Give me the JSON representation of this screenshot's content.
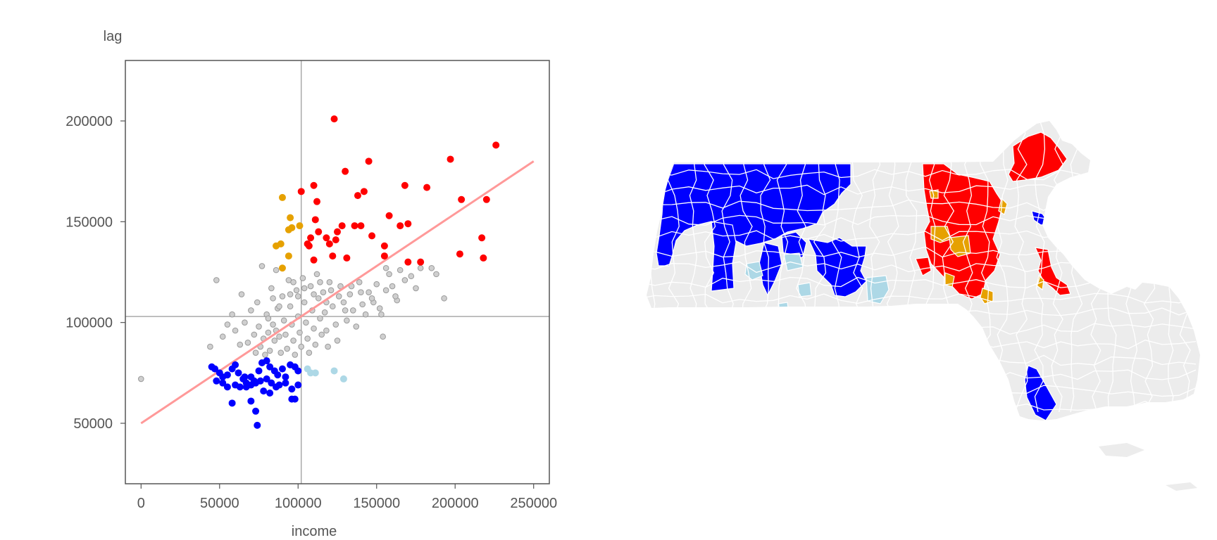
{
  "chart_data": [
    {
      "type": "scatter",
      "title": "",
      "xlabel": "income",
      "ylabel": "lag",
      "xlim": [
        -10000,
        260000
      ],
      "ylim": [
        20000,
        230000
      ],
      "x_ticks": [
        "0",
        "50000",
        "100000",
        "150000",
        "200000",
        "250000"
      ],
      "y_ticks": [
        "50000",
        "100000",
        "150000",
        "200000"
      ],
      "x_tick_values": [
        0,
        50000,
        100000,
        150000,
        200000,
        250000
      ],
      "y_tick_values": [
        50000,
        100000,
        150000,
        200000
      ],
      "grid": false,
      "reference_lines": {
        "x_mean": 102000,
        "y_mean": 103000
      },
      "regression_line": {
        "points": [
          [
            0,
            50000
          ],
          [
            250000,
            180000
          ]
        ],
        "color": "#ff9999"
      },
      "colors": {
        "hh": "#ff0000",
        "lh": "#e6a100",
        "ll": "#0000ff",
        "hl": "#add8e6",
        "ns": "#aaaaaa",
        "axis": "#555555",
        "refline": "#aaaaaa"
      },
      "series": [
        {
          "key": "hh",
          "values": [
            [
              123000,
              201000
            ],
            [
              130000,
              175000
            ],
            [
              145000,
              180000
            ],
            [
              110000,
              168000
            ],
            [
              102000,
              165000
            ],
            [
              112000,
              160000
            ],
            [
              138000,
              163000
            ],
            [
              142000,
              165000
            ],
            [
              158000,
              153000
            ],
            [
              165000,
              148000
            ],
            [
              170000,
              149000
            ],
            [
              168000,
              168000
            ],
            [
              182000,
              167000
            ],
            [
              197000,
              181000
            ],
            [
              226000,
              188000
            ],
            [
              204000,
              161000
            ],
            [
              220000,
              161000
            ],
            [
              217000,
              142000
            ],
            [
              218000,
              132000
            ],
            [
              203000,
              134000
            ],
            [
              178000,
              130000
            ],
            [
              170000,
              130000
            ],
            [
              155000,
              133000
            ],
            [
              155000,
              138000
            ],
            [
              147000,
              143000
            ],
            [
              140000,
              148000
            ],
            [
              136000,
              148000
            ],
            [
              131000,
              132000
            ],
            [
              122000,
              133000
            ],
            [
              110000,
              131000
            ],
            [
              106000,
              139000
            ],
            [
              108000,
              142000
            ],
            [
              113000,
              145000
            ],
            [
              118000,
              142000
            ],
            [
              125000,
              145000
            ],
            [
              128000,
              148000
            ],
            [
              120000,
              139000
            ],
            [
              124000,
              141000
            ],
            [
              111000,
              151000
            ],
            [
              107000,
              138000
            ]
          ]
        },
        {
          "key": "lh",
          "values": [
            [
              90000,
              162000
            ],
            [
              95000,
              152000
            ],
            [
              96000,
              147000
            ],
            [
              94000,
              146000
            ],
            [
              101000,
              148000
            ],
            [
              89000,
              139000
            ],
            [
              86000,
              138000
            ],
            [
              94000,
              133000
            ],
            [
              90000,
              127000
            ]
          ]
        },
        {
          "key": "ll",
          "values": [
            [
              45000,
              78000
            ],
            [
              47000,
              77000
            ],
            [
              50000,
              75000
            ],
            [
              52000,
              73000
            ],
            [
              55000,
              74000
            ],
            [
              58000,
              77000
            ],
            [
              60000,
              79000
            ],
            [
              62000,
              75000
            ],
            [
              65000,
              72000
            ],
            [
              67000,
              70000
            ],
            [
              70000,
              73000
            ],
            [
              72000,
              71000
            ],
            [
              75000,
              76000
            ],
            [
              77000,
              80000
            ],
            [
              80000,
              81000
            ],
            [
              82000,
              78000
            ],
            [
              85000,
              76000
            ],
            [
              87000,
              74000
            ],
            [
              90000,
              77000
            ],
            [
              92000,
              73000
            ],
            [
              95000,
              79000
            ],
            [
              98000,
              78000
            ],
            [
              100000,
              76000
            ],
            [
              48000,
              71000
            ],
            [
              52000,
              70000
            ],
            [
              55000,
              68000
            ],
            [
              60000,
              69000
            ],
            [
              63000,
              68000
            ],
            [
              67000,
              68000
            ],
            [
              70000,
              69000
            ],
            [
              73000,
              70000
            ],
            [
              76000,
              71000
            ],
            [
              80000,
              72000
            ],
            [
              83000,
              70000
            ],
            [
              86000,
              68000
            ],
            [
              88000,
              69000
            ],
            [
              92000,
              70000
            ],
            [
              96000,
              67000
            ],
            [
              100000,
              69000
            ],
            [
              58000,
              60000
            ],
            [
              70000,
              61000
            ],
            [
              73000,
              56000
            ],
            [
              74000,
              49000
            ],
            [
              96000,
              62000
            ],
            [
              98000,
              62000
            ],
            [
              78000,
              66000
            ],
            [
              82000,
              65000
            ],
            [
              66000,
              73000
            ]
          ]
        },
        {
          "key": "hl",
          "values": [
            [
              106000,
              77000
            ],
            [
              108000,
              75000
            ],
            [
              111000,
              75000
            ],
            [
              123000,
              76000
            ],
            [
              129000,
              72000
            ]
          ]
        },
        {
          "key": "ns",
          "values": [
            [
              0,
              72000
            ],
            [
              48000,
              121000
            ],
            [
              44000,
              88000
            ],
            [
              52000,
              93000
            ],
            [
              55000,
              99000
            ],
            [
              58000,
              104000
            ],
            [
              60000,
              96000
            ],
            [
              63000,
              89000
            ],
            [
              64000,
              114000
            ],
            [
              66000,
              100000
            ],
            [
              68000,
              90000
            ],
            [
              70000,
              106000
            ],
            [
              72000,
              94000
            ],
            [
              73000,
              85000
            ],
            [
              74000,
              110000
            ],
            [
              75000,
              98000
            ],
            [
              76000,
              88000
            ],
            [
              77000,
              128000
            ],
            [
              78000,
              92000
            ],
            [
              79000,
              84000
            ],
            [
              80000,
              104000
            ],
            [
              81000,
              95000
            ],
            [
              82000,
              86000
            ],
            [
              83000,
              117000
            ],
            [
              84000,
              99000
            ],
            [
              85000,
              91000
            ],
            [
              86000,
              126000
            ],
            [
              87000,
              107000
            ],
            [
              88000,
              93000
            ],
            [
              89000,
              85000
            ],
            [
              90000,
              113000
            ],
            [
              91000,
              101000
            ],
            [
              92000,
              94000
            ],
            [
              93000,
              87000
            ],
            [
              94000,
              121000
            ],
            [
              95000,
              108000
            ],
            [
              96000,
              99000
            ],
            [
              97000,
              91000
            ],
            [
              98000,
              84000
            ],
            [
              99000,
              116000
            ],
            [
              100000,
              103000
            ],
            [
              101000,
              95000
            ],
            [
              102000,
              88000
            ],
            [
              103000,
              122000
            ],
            [
              104000,
              110000
            ],
            [
              105000,
              100000
            ],
            [
              106000,
              92000
            ],
            [
              107000,
              85000
            ],
            [
              108000,
              118000
            ],
            [
              109000,
              106000
            ],
            [
              110000,
              97000
            ],
            [
              111000,
              89000
            ],
            [
              112000,
              124000
            ],
            [
              113000,
              112000
            ],
            [
              114000,
              102000
            ],
            [
              115000,
              94000
            ],
            [
              116000,
              115000
            ],
            [
              117000,
              105000
            ],
            [
              118000,
              96000
            ],
            [
              119000,
              88000
            ],
            [
              120000,
              120000
            ],
            [
              122000,
              108000
            ],
            [
              124000,
              99000
            ],
            [
              125000,
              91000
            ],
            [
              127000,
              118000
            ],
            [
              129000,
              110000
            ],
            [
              131000,
              101000
            ],
            [
              133000,
              114000
            ],
            [
              135000,
              106000
            ],
            [
              137000,
              98000
            ],
            [
              139000,
              120000
            ],
            [
              141000,
              109000
            ],
            [
              143000,
              104000
            ],
            [
              145000,
              115000
            ],
            [
              148000,
              110000
            ],
            [
              150000,
              119000
            ],
            [
              152000,
              107000
            ],
            [
              154000,
              93000
            ],
            [
              156000,
              116000
            ],
            [
              158000,
              124000
            ],
            [
              160000,
              118000
            ],
            [
              163000,
              111000
            ],
            [
              165000,
              126000
            ],
            [
              168000,
              121000
            ],
            [
              172000,
              123000
            ],
            [
              175000,
              117000
            ],
            [
              178000,
              127000
            ],
            [
              185000,
              127000
            ],
            [
              188000,
              124000
            ],
            [
              193000,
              112000
            ],
            [
              156000,
              127000
            ],
            [
              162000,
              113000
            ],
            [
              97000,
              120000
            ],
            [
              95000,
              114000
            ],
            [
              88000,
              108000
            ],
            [
              84000,
              112000
            ],
            [
              81000,
              102000
            ],
            [
              86000,
              96000
            ],
            [
              100000,
              113000
            ],
            [
              104000,
              117000
            ],
            [
              110000,
              114000
            ],
            [
              114000,
              120000
            ],
            [
              118000,
              110000
            ],
            [
              121000,
              116000
            ],
            [
              126000,
              113000
            ],
            [
              130000,
              106000
            ],
            [
              134000,
              118000
            ],
            [
              140000,
              115000
            ],
            [
              147000,
              112000
            ],
            [
              153000,
              104000
            ]
          ]
        }
      ]
    },
    {
      "type": "map",
      "title": "",
      "colors": {
        "hh": "#ff0000",
        "lh": "#e6a100",
        "ll": "#0000ff",
        "hl": "#add8e6",
        "ns": "#ececec",
        "border": "#ffffff"
      }
    }
  ]
}
